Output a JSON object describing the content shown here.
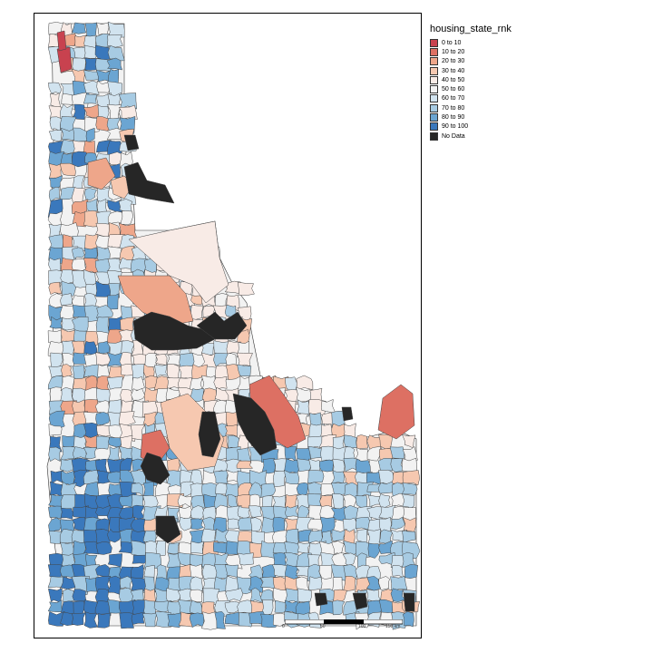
{
  "legend": {
    "title": "housing_state_rnk",
    "items": [
      {
        "label": "0 to 10",
        "color": "#c8424f"
      },
      {
        "label": "10 to 20",
        "color": "#dd7063"
      },
      {
        "label": "20 to 30",
        "color": "#eea68a"
      },
      {
        "label": "30 to 40",
        "color": "#f6c8b0"
      },
      {
        "label": "40 to 50",
        "color": "#f8ebe6"
      },
      {
        "label": "50 to 60",
        "color": "#f2f2f2"
      },
      {
        "label": "60 to 70",
        "color": "#d1e3ef"
      },
      {
        "label": "70 to 80",
        "color": "#a7cbe3"
      },
      {
        "label": "80 to 90",
        "color": "#6ba5d2"
      },
      {
        "label": "90 to 100",
        "color": "#3a78bc"
      },
      {
        "label": "No Data",
        "color": "#262626"
      }
    ]
  },
  "scale_bar": {
    "labels": [
      "0",
      "50",
      "100",
      "150 km"
    ]
  }
}
